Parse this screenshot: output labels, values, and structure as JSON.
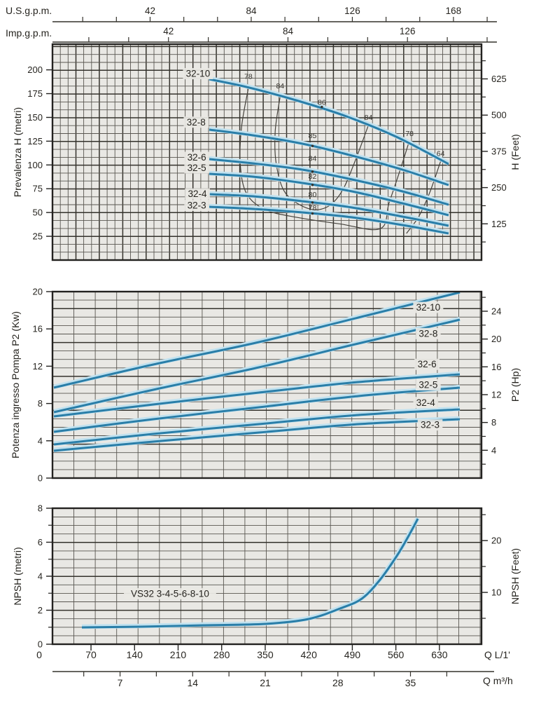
{
  "colors": {
    "plot_bg": "#e9e8e4",
    "grid_minor": "#595650",
    "grid_major": "#34322c",
    "border": "#232220",
    "curve": "#2a7ea8",
    "curve_halo": "#c0e1ef",
    "contour": "#45423c",
    "text": "#26241f"
  },
  "top_axes": {
    "us": {
      "label": "U.S.g.p.m.",
      "ticks": [
        42,
        84,
        126,
        168
      ],
      "minor_step": 14,
      "max": 182
    },
    "imp": {
      "label": "Imp.g.p.m.",
      "ticks": [
        42,
        84,
        126
      ],
      "minor_step": 14,
      "max": 154
    }
  },
  "bottom_axes": {
    "lmin": {
      "label": "Q L/1'",
      "ticks": [
        0,
        70,
        140,
        210,
        280,
        350,
        420,
        490,
        560,
        630
      ]
    },
    "m3h": {
      "label": "Q m³/h",
      "ticks": [
        7,
        14,
        21,
        28,
        35
      ],
      "minor_step": 3.5,
      "max": 38.5
    }
  },
  "chart_data": [
    {
      "id": "head-flow",
      "type": "line",
      "xlabel": "Q L/1'",
      "ylabel_left": "Prevalenza H (metri)",
      "ylabel_right": "H (Feet)",
      "xlim": [
        8,
        698
      ],
      "ylim": [
        0,
        227
      ],
      "yticks_left": [
        25,
        50,
        75,
        100,
        125,
        150,
        175,
        200
      ],
      "yticks_right": [
        125,
        250,
        375,
        500,
        625
      ],
      "yticks_right_minor": [
        62.5,
        187.5,
        312.5,
        437.5,
        562.5,
        687.5
      ],
      "right_unit_factor": 0.3048,
      "series": [
        {
          "name": "32-10",
          "points": [
            [
              260,
              190
            ],
            [
              320,
              182
            ],
            [
              400,
              168
            ],
            [
              480,
              151
            ],
            [
              560,
              130
            ],
            [
              645,
              101
            ]
          ]
        },
        {
          "name": "32-8",
          "points": [
            [
              260,
              137
            ],
            [
              330,
              131
            ],
            [
              410,
              122
            ],
            [
              490,
              110
            ],
            [
              570,
              95
            ],
            [
              645,
              79
            ]
          ]
        },
        {
          "name": "32-6",
          "points": [
            [
              260,
              106
            ],
            [
              330,
              102
            ],
            [
              410,
              95
            ],
            [
              490,
              85
            ],
            [
              570,
              72
            ],
            [
              645,
              58
            ]
          ]
        },
        {
          "name": "32-5",
          "points": [
            [
              260,
              91
            ],
            [
              330,
              88
            ],
            [
              410,
              81
            ],
            [
              490,
              72
            ],
            [
              570,
              60
            ],
            [
              645,
              47
            ]
          ]
        },
        {
          "name": "32-4",
          "points": [
            [
              260,
              69
            ],
            [
              330,
              67
            ],
            [
              410,
              62
            ],
            [
              490,
              55
            ],
            [
              570,
              46
            ],
            [
              645,
              36
            ]
          ]
        },
        {
          "name": "32-3",
          "points": [
            [
              260,
              56
            ],
            [
              330,
              54
            ],
            [
              410,
              50
            ],
            [
              490,
              45
            ],
            [
              570,
              37
            ],
            [
              645,
              28
            ]
          ]
        }
      ],
      "series_labels": [
        {
          "text": "32-10",
          "x": 242,
          "y": 196
        },
        {
          "text": "32-8",
          "x": 239,
          "y": 145
        },
        {
          "text": "32-6",
          "x": 240,
          "y": 108
        },
        {
          "text": "32-5",
          "x": 240,
          "y": 97
        },
        {
          "text": "32-4",
          "x": 241,
          "y": 69.5
        },
        {
          "text": "32-3",
          "x": 240,
          "y": 57.5
        }
      ],
      "efficiency_labels": [
        {
          "text": "78",
          "x": 323,
          "y": 193
        },
        {
          "text": "84",
          "x": 374,
          "y": 183
        },
        {
          "text": "86",
          "x": 441,
          "y": 166
        },
        {
          "text": "84",
          "x": 516,
          "y": 150
        },
        {
          "text": "85",
          "x": 426,
          "y": 131
        },
        {
          "text": "78",
          "x": 582,
          "y": 133
        },
        {
          "text": "84",
          "x": 426,
          "y": 107
        },
        {
          "text": "64",
          "x": 632,
          "y": 112
        },
        {
          "text": "82",
          "x": 426,
          "y": 88
        },
        {
          "text": "80",
          "x": 426,
          "y": 69
        },
        {
          "text": "78",
          "x": 426,
          "y": 55
        }
      ],
      "bep_markers": [
        {
          "x": 441,
          "y": 161
        },
        {
          "x": 426,
          "y": 120
        },
        {
          "x": 426,
          "y": 93
        },
        {
          "x": 426,
          "y": 79
        },
        {
          "x": 426,
          "y": 60.5
        },
        {
          "x": 426,
          "y": 49
        }
      ],
      "efficiency_contours": [
        {
          "value": 78,
          "points": [
            [
              323,
              181
            ],
            [
              312,
              140
            ],
            [
              310,
              100
            ],
            [
              320,
              70
            ],
            [
              350,
              53
            ],
            [
              400,
              45
            ],
            [
              470,
              38
            ],
            [
              535,
              33
            ],
            [
              549,
              60
            ],
            [
              566,
              93
            ],
            [
              582,
              126
            ]
          ]
        },
        {
          "value": 84,
          "points": [
            [
              374,
              172
            ],
            [
              366,
              135
            ],
            [
              368,
              100
            ],
            [
              383,
              70
            ],
            [
              420,
              54
            ],
            [
              450,
              56
            ],
            [
              473,
              72
            ],
            [
              492,
              100
            ],
            [
              516,
              142
            ]
          ]
        },
        {
          "value": 64,
          "points": [
            [
              632,
              104
            ],
            [
              615,
              72
            ],
            [
              597,
              46
            ],
            [
              577,
              28
            ]
          ]
        }
      ]
    },
    {
      "id": "power-flow",
      "type": "line",
      "xlabel": "Q L/1'",
      "ylabel_left": "Potenza ingresso Pompa P2 (Kw)",
      "ylabel_right": "P2 (Hp)",
      "xlim": [
        8,
        698
      ],
      "ylim": [
        0,
        20
      ],
      "yticks_left": [
        0,
        4,
        8,
        12,
        16,
        20
      ],
      "yticks_right": [
        4,
        8,
        12,
        16,
        20,
        24
      ],
      "yticks_right_minor": [
        2,
        6,
        10,
        14,
        18,
        22,
        26
      ],
      "right_unit_factor": 0.7457,
      "series": [
        {
          "name": "32-10",
          "points": [
            [
              10,
              9.7
            ],
            [
              170,
              12.2
            ],
            [
              340,
              14.6
            ],
            [
              500,
              17.2
            ],
            [
              663,
              19.9
            ]
          ]
        },
        {
          "name": "32-8",
          "points": [
            [
              10,
              7.1
            ],
            [
              170,
              9.5
            ],
            [
              340,
              11.9
            ],
            [
              500,
              14.4
            ],
            [
              663,
              17.0
            ]
          ]
        },
        {
          "name": "32-6",
          "points": [
            [
              10,
              6.6
            ],
            [
              170,
              7.9
            ],
            [
              340,
              9.2
            ],
            [
              500,
              10.3
            ],
            [
              663,
              11.1
            ]
          ]
        },
        {
          "name": "32-5",
          "points": [
            [
              10,
              5.0
            ],
            [
              170,
              6.3
            ],
            [
              340,
              7.6
            ],
            [
              500,
              8.8
            ],
            [
              663,
              9.7
            ]
          ]
        },
        {
          "name": "32-4",
          "points": [
            [
              10,
              3.6
            ],
            [
              170,
              4.7
            ],
            [
              340,
              5.8
            ],
            [
              500,
              6.8
            ],
            [
              663,
              7.4
            ]
          ]
        },
        {
          "name": "32-3",
          "points": [
            [
              10,
              2.9
            ],
            [
              170,
              3.9
            ],
            [
              340,
              4.9
            ],
            [
              500,
              5.8
            ],
            [
              663,
              6.3
            ]
          ]
        }
      ],
      "series_labels": [
        {
          "text": "32-10",
          "x": 612,
          "y": 18.3
        },
        {
          "text": "32-8",
          "x": 612,
          "y": 15.5
        },
        {
          "text": "32-6",
          "x": 610,
          "y": 12.2
        },
        {
          "text": "32-5",
          "x": 612,
          "y": 10.0
        },
        {
          "text": "32-4",
          "x": 608,
          "y": 8.1
        },
        {
          "text": "32-3",
          "x": 615,
          "y": 5.7
        }
      ]
    },
    {
      "id": "npsh-flow",
      "type": "line",
      "xlabel": "Q L/1'",
      "ylabel_left": "NPSH (metri)",
      "ylabel_right": "NPSH (Feet)",
      "xlim": [
        8,
        698
      ],
      "ylim": [
        0,
        8
      ],
      "yticks_left": [
        0,
        2,
        4,
        6,
        8
      ],
      "yticks_left_minor": [
        1,
        3,
        5,
        7
      ],
      "yticks_right": [
        10,
        20
      ],
      "yticks_right_minor": [
        5,
        15,
        25
      ],
      "right_unit_factor": 0.3048,
      "series": [
        {
          "name": "VS32 3-4-5-6-8-10",
          "points": [
            [
              55,
              1.0
            ],
            [
              150,
              1.05
            ],
            [
              250,
              1.1
            ],
            [
              350,
              1.2
            ],
            [
              420,
              1.5
            ],
            [
              470,
              2.1
            ],
            [
              505,
              2.7
            ],
            [
              535,
              3.8
            ],
            [
              562,
              5.2
            ],
            [
              580,
              6.3
            ],
            [
              595,
              7.4
            ]
          ]
        }
      ],
      "series_labels": [
        {
          "text": "VS32 3-4-5-6-8-10",
          "x": 197,
          "y": 2.97
        }
      ]
    }
  ]
}
